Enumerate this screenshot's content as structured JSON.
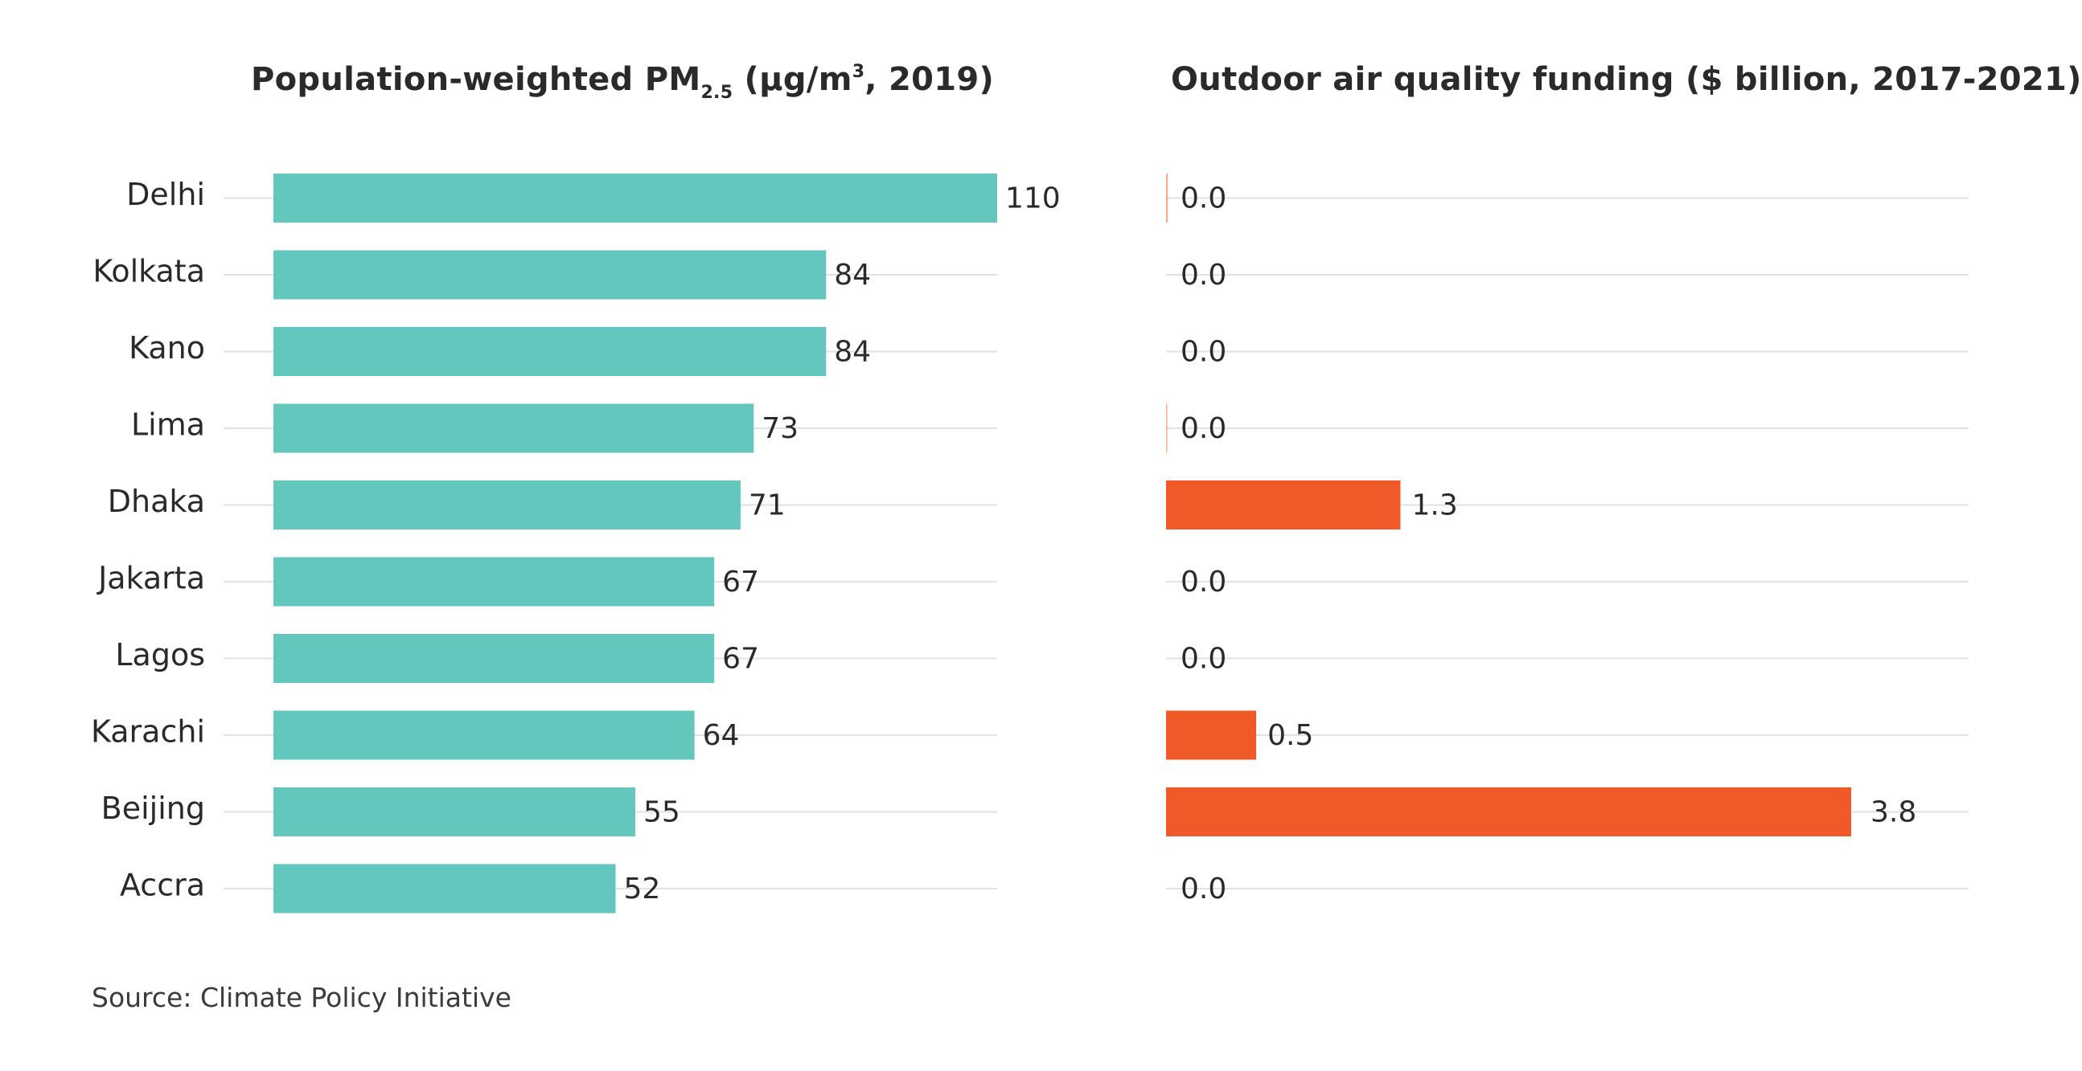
{
  "chart_data": [
    {
      "type": "bar",
      "orientation": "horizontal",
      "title_parts": {
        "lead": "Population-weighted PM",
        "subscript": "2.5",
        "unit_open": " (µg/m",
        "superscript": "3",
        "unit_close": ", 2019)"
      },
      "categories": [
        "Delhi",
        "Kolkata",
        "Kano",
        "Lima",
        "Dhaka",
        "Jakarta",
        "Lagos",
        "Karachi",
        "Beijing",
        "Accra"
      ],
      "values": [
        110,
        84,
        84,
        73,
        71,
        67,
        67,
        64,
        55,
        52
      ],
      "value_labels": [
        "110",
        "84",
        "84",
        "73",
        "71",
        "67",
        "67",
        "64",
        "55",
        "52"
      ],
      "xlim": [
        0,
        110
      ],
      "color": "#63c7be",
      "grid": true
    },
    {
      "type": "bar",
      "orientation": "horizontal",
      "title": "Outdoor air quality funding ($ billion, 2017-2021)",
      "categories": [
        "Delhi",
        "Kolkata",
        "Kano",
        "Lima",
        "Dhaka",
        "Jakarta",
        "Lagos",
        "Karachi",
        "Beijing",
        "Accra"
      ],
      "values": [
        0.01,
        0.0,
        0.0,
        0.005,
        1.3,
        0.0,
        0.0,
        0.5,
        3.8,
        0.0
      ],
      "value_labels": [
        "0.0",
        "0.0",
        "0.0",
        "0.0",
        "1.3",
        "0.0",
        "0.0",
        "0.5",
        "3.8",
        "0.0"
      ],
      "xlim": [
        0,
        3.8
      ],
      "color": "#f05a28",
      "grid": true
    }
  ],
  "source": "Source: Climate Policy Initiative"
}
